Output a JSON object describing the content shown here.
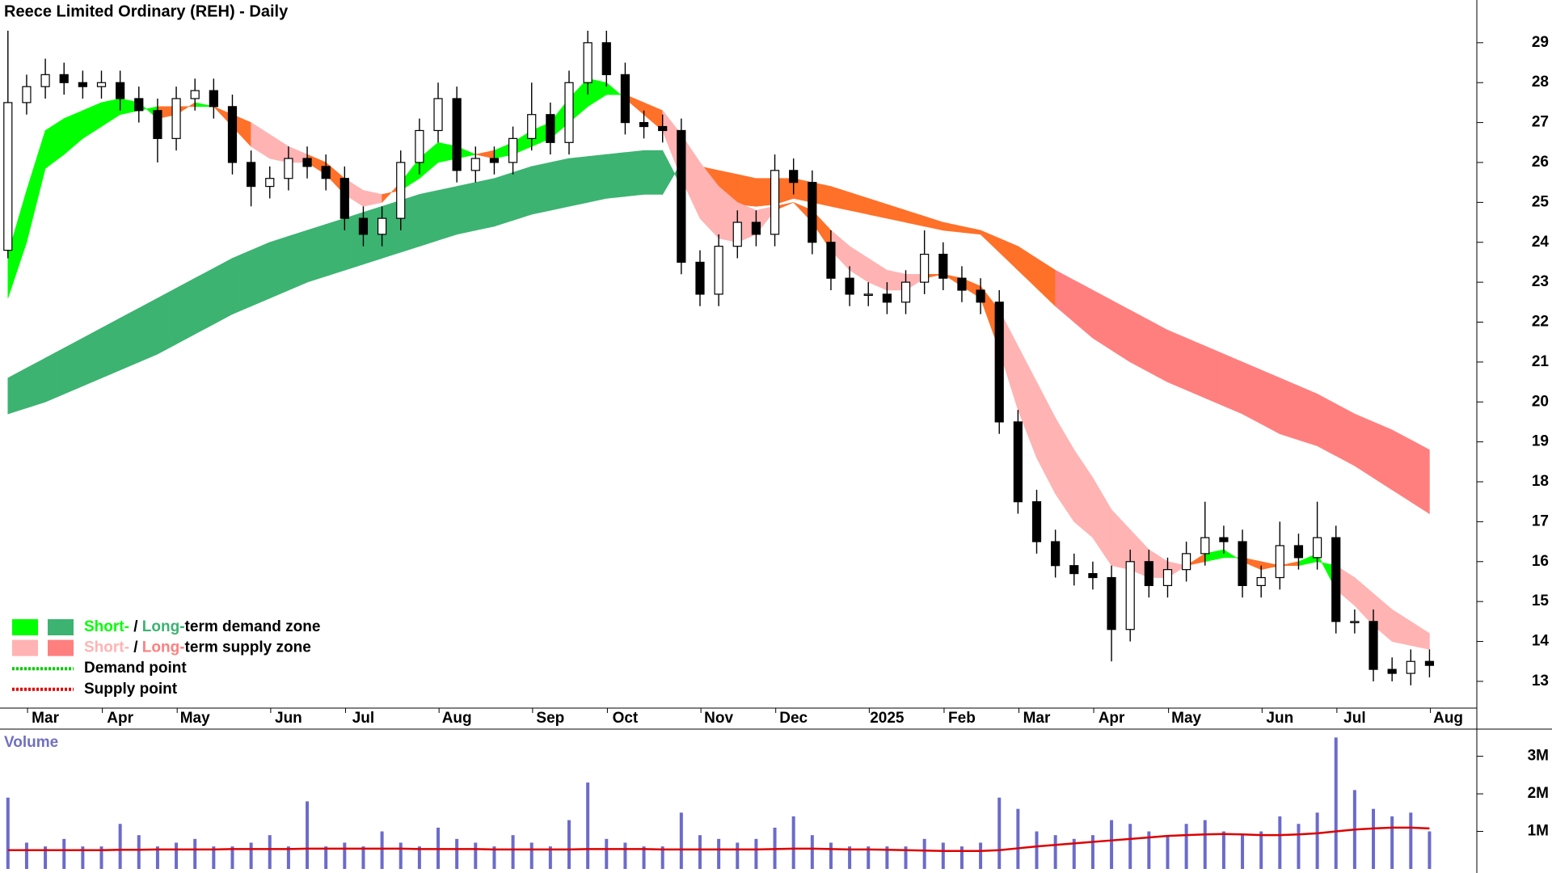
{
  "chart_data": [
    {
      "type": "candlestick",
      "title": "Reece Limited Ordinary (REH) - Daily",
      "categories": [
        null,
        null,
        "Mar",
        null,
        null,
        null,
        "Apr",
        null,
        null,
        null,
        "May",
        null,
        null,
        null,
        null,
        "Jun",
        null,
        null,
        null,
        "Jul",
        null,
        null,
        null,
        null,
        "Aug",
        null,
        null,
        null,
        null,
        "Sep",
        null,
        null,
        null,
        "Oct",
        null,
        null,
        null,
        null,
        "Nov",
        null,
        null,
        null,
        "Dec",
        null,
        null,
        null,
        null,
        "2025",
        null,
        null,
        null,
        "Feb",
        null,
        null,
        null,
        "Mar",
        null,
        null,
        null,
        "Apr",
        null,
        null,
        null,
        "May",
        null,
        null,
        null,
        null,
        "Jun",
        null,
        null,
        null,
        "Jul",
        null,
        null,
        null,
        null,
        "Aug"
      ],
      "open": [
        23.8,
        27.5,
        27.9,
        28.2,
        28.0,
        27.9,
        28.0,
        27.6,
        27.3,
        26.6,
        27.6,
        27.8,
        27.4,
        26.0,
        25.4,
        25.6,
        26.1,
        25.9,
        25.6,
        24.6,
        24.2,
        24.6,
        26.0,
        26.8,
        27.6,
        25.8,
        26.1,
        26.0,
        26.6,
        27.2,
        26.5,
        28.0,
        29.0,
        28.2,
        27.0,
        26.9,
        26.8,
        23.5,
        22.7,
        23.9,
        24.5,
        24.2,
        25.8,
        25.5,
        24.0,
        23.1,
        22.7,
        22.7,
        22.5,
        23.0,
        23.7,
        23.1,
        22.8,
        22.5,
        19.5,
        17.5,
        16.5,
        15.9,
        15.7,
        15.6,
        14.3,
        16.0,
        15.4,
        15.8,
        16.2,
        16.6,
        16.5,
        15.4,
        15.6,
        16.4,
        16.1,
        16.6,
        14.5,
        14.5,
        13.3,
        13.2,
        13.5,
        null
      ],
      "high": [
        29.3,
        28.2,
        28.6,
        28.5,
        28.3,
        28.3,
        28.3,
        27.9,
        27.6,
        27.9,
        28.1,
        28.1,
        27.7,
        26.3,
        25.9,
        26.4,
        26.4,
        26.2,
        25.9,
        24.9,
        24.9,
        26.3,
        27.1,
        28.0,
        27.9,
        26.4,
        26.4,
        26.9,
        28.0,
        27.5,
        28.3,
        29.3,
        29.3,
        28.5,
        27.3,
        27.2,
        27.1,
        23.8,
        24.2,
        24.8,
        24.8,
        26.2,
        26.1,
        25.8,
        24.3,
        23.4,
        23.0,
        23.0,
        23.3,
        24.3,
        24.0,
        23.4,
        23.1,
        22.8,
        19.8,
        17.8,
        16.8,
        16.2,
        16.0,
        15.9,
        16.3,
        16.3,
        16.1,
        16.5,
        17.5,
        16.9,
        16.8,
        15.9,
        17.0,
        16.7,
        17.5,
        16.9,
        14.8,
        14.8,
        13.6,
        13.8,
        13.8,
        null
      ],
      "low": [
        23.6,
        27.2,
        27.6,
        27.7,
        27.6,
        27.6,
        27.3,
        27.0,
        26.0,
        26.3,
        27.3,
        27.1,
        25.7,
        24.9,
        25.1,
        25.3,
        25.6,
        25.3,
        24.3,
        23.9,
        23.9,
        24.3,
        25.7,
        26.5,
        25.5,
        25.5,
        25.7,
        25.7,
        26.3,
        26.2,
        26.2,
        27.7,
        27.9,
        26.7,
        26.6,
        26.5,
        23.2,
        22.4,
        22.4,
        23.6,
        23.9,
        23.9,
        25.2,
        23.7,
        22.8,
        22.4,
        22.4,
        22.2,
        22.2,
        22.7,
        22.8,
        22.5,
        22.2,
        19.2,
        17.2,
        16.2,
        15.6,
        15.4,
        15.3,
        13.5,
        14.0,
        15.1,
        15.1,
        15.5,
        15.9,
        16.2,
        15.1,
        15.1,
        15.3,
        15.8,
        15.8,
        14.2,
        14.2,
        13.0,
        13.0,
        12.9,
        13.1,
        null
      ],
      "close": [
        27.5,
        27.9,
        28.2,
        28.0,
        27.9,
        28.0,
        27.6,
        27.3,
        26.6,
        27.6,
        27.8,
        27.4,
        26.0,
        25.4,
        25.6,
        26.1,
        25.9,
        25.6,
        24.6,
        24.2,
        24.6,
        26.0,
        26.8,
        27.6,
        25.8,
        26.1,
        26.0,
        26.6,
        27.2,
        26.5,
        28.0,
        29.0,
        28.2,
        27.0,
        26.9,
        26.8,
        23.5,
        22.7,
        23.9,
        24.5,
        24.2,
        25.8,
        25.5,
        24.0,
        23.1,
        22.7,
        22.7,
        22.5,
        23.0,
        23.7,
        23.1,
        22.8,
        22.5,
        19.5,
        17.5,
        16.5,
        15.9,
        15.7,
        15.6,
        14.3,
        16.0,
        15.4,
        15.8,
        16.2,
        16.6,
        16.5,
        15.4,
        15.6,
        16.4,
        16.1,
        16.6,
        14.5,
        14.5,
        13.3,
        13.2,
        13.5,
        13.4,
        null
      ],
      "bands": [
        {
          "fast": [
            20.6,
            20.85,
            21.1,
            21.35,
            21.6,
            21.85,
            22.1,
            22.35,
            22.6,
            22.85,
            23.1,
            23.35,
            23.6,
            23.8,
            24.0,
            24.15,
            24.3,
            24.45,
            24.6,
            24.75,
            24.9,
            25.05,
            25.2,
            25.3,
            25.4,
            25.5,
            25.6,
            25.75,
            25.9,
            26.0,
            26.1,
            26.15,
            26.2,
            26.25,
            26.3,
            26.3,
            25.4,
            25.2,
            25.05,
            24.95,
            24.9,
            24.95,
            25.1,
            25.0,
            24.9,
            24.8,
            24.7,
            24.6,
            24.5,
            24.4,
            24.3,
            24.25,
            24.2,
            23.75,
            23.3,
            22.85,
            22.4,
            22.0,
            21.6,
            21.3,
            21.0,
            20.75,
            20.5,
            20.3,
            20.1,
            19.9,
            19.7,
            19.45,
            19.2,
            19.05,
            18.9,
            18.65,
            18.4,
            18.1,
            17.8,
            17.5,
            17.2,
            null
          ],
          "slow": [
            19.7,
            19.85,
            20.0,
            20.2,
            20.4,
            20.6,
            20.8,
            21.0,
            21.2,
            21.45,
            21.7,
            21.95,
            22.2,
            22.4,
            22.6,
            22.8,
            23.0,
            23.15,
            23.3,
            23.45,
            23.6,
            23.75,
            23.9,
            24.05,
            24.2,
            24.3,
            24.4,
            24.55,
            24.7,
            24.8,
            24.9,
            25.0,
            25.1,
            25.15,
            25.2,
            25.2,
            26.0,
            25.9,
            25.8,
            25.7,
            25.6,
            25.6,
            25.6,
            25.5,
            25.4,
            25.25,
            25.1,
            24.95,
            24.8,
            24.65,
            24.5,
            24.4,
            24.3,
            24.1,
            23.9,
            23.6,
            23.3,
            23.05,
            22.8,
            22.55,
            22.3,
            22.05,
            21.8,
            21.6,
            21.4,
            21.2,
            21.0,
            20.8,
            20.6,
            20.4,
            20.2,
            19.95,
            19.7,
            19.5,
            19.3,
            19.05,
            18.8,
            null
          ],
          "up_color": "#3cb371",
          "down_color": "#ff7f7f",
          "mixed_color": "#ff7029"
        },
        {
          "fast": [
            23.7,
            25.3,
            26.8,
            27.1,
            27.3,
            27.5,
            27.6,
            27.5,
            27.1,
            27.2,
            27.5,
            27.4,
            26.9,
            26.4,
            26.1,
            26.0,
            26.0,
            25.7,
            25.2,
            24.9,
            25.0,
            25.5,
            26.1,
            26.5,
            26.4,
            26.2,
            26.3,
            26.5,
            26.8,
            27.0,
            27.6,
            28.1,
            28.0,
            27.6,
            27.2,
            26.8,
            25.6,
            24.6,
            24.1,
            24.0,
            24.2,
            24.8,
            25.0,
            24.5,
            23.8,
            23.3,
            23.0,
            22.8,
            22.8,
            23.1,
            23.2,
            22.9,
            22.6,
            21.3,
            19.8,
            18.6,
            17.7,
            17.0,
            16.6,
            15.9,
            15.8,
            15.6,
            15.6,
            15.9,
            16.2,
            16.3,
            16.0,
            15.8,
            15.9,
            16.0,
            16.2,
            15.3,
            14.9,
            14.4,
            14.0,
            13.9,
            13.8,
            null
          ],
          "slow": [
            22.6,
            24.0,
            25.85,
            26.2,
            26.6,
            26.9,
            27.2,
            27.3,
            27.4,
            27.4,
            27.4,
            27.4,
            27.2,
            27.0,
            26.7,
            26.4,
            26.2,
            26.0,
            25.6,
            25.3,
            25.2,
            25.3,
            25.6,
            26.0,
            26.1,
            26.2,
            26.1,
            26.2,
            26.4,
            26.6,
            27.0,
            27.4,
            27.7,
            27.7,
            27.5,
            27.3,
            26.7,
            26.0,
            25.4,
            25.0,
            24.8,
            24.9,
            25.0,
            24.8,
            24.3,
            23.9,
            23.6,
            23.3,
            23.2,
            23.2,
            23.2,
            23.1,
            22.9,
            22.3,
            21.4,
            20.5,
            19.6,
            18.8,
            18.1,
            17.3,
            16.8,
            16.3,
            16.0,
            15.9,
            16.0,
            16.1,
            16.1,
            16.0,
            15.9,
            15.9,
            16.0,
            15.9,
            15.6,
            15.2,
            14.8,
            14.5,
            14.2,
            null
          ],
          "up_color": "#00ff00",
          "down_color": "#ffb3b3",
          "mixed_color": "#ff7029"
        }
      ],
      "ylim": [
        12.33,
        30.07
      ],
      "yticks": [
        13,
        14,
        15,
        16,
        17,
        18,
        19,
        20,
        21,
        22,
        23,
        24,
        25,
        26,
        27,
        28,
        29
      ],
      "legend_corner": "lower-left",
      "legend": [
        {
          "colors": [
            "#00ff00",
            "#3cb371"
          ],
          "text": [
            "Short-",
            " / ",
            "Long-",
            "term demand zone"
          ]
        },
        {
          "colors": [
            "#ffb3b3",
            "#ff7f7f"
          ],
          "text": [
            "Short-",
            " / ",
            "Long-",
            "term supply zone"
          ]
        },
        {
          "line_color": "#00cc00",
          "text": "Demand point"
        },
        {
          "line_color": "#dd0000",
          "text": "Supply point"
        }
      ]
    },
    {
      "type": "bar",
      "title": "Volume",
      "color": "#6b6bcc",
      "values": [
        1900000,
        700000,
        600000,
        800000,
        600000,
        600000,
        1200000,
        900000,
        600000,
        700000,
        800000,
        600000,
        600000,
        700000,
        900000,
        600000,
        1800000,
        600000,
        700000,
        600000,
        1000000,
        700000,
        600000,
        1100000,
        800000,
        700000,
        600000,
        900000,
        700000,
        600000,
        1300000,
        2300000,
        800000,
        700000,
        600000,
        600000,
        1500000,
        900000,
        800000,
        700000,
        800000,
        1100000,
        1400000,
        900000,
        700000,
        600000,
        600000,
        600000,
        600000,
        800000,
        700000,
        600000,
        700000,
        1900000,
        1600000,
        1000000,
        900000,
        800000,
        900000,
        1300000,
        1200000,
        1000000,
        900000,
        1200000,
        1300000,
        1000000,
        900000,
        1000000,
        1400000,
        1200000,
        1500000,
        3500000,
        2100000,
        1600000,
        1400000,
        1500000,
        1000000,
        null
      ],
      "average": {
        "color": "#dd0000",
        "values": [
          500000,
          500000,
          500000,
          500000,
          500000,
          500000,
          510000,
          510000,
          520000,
          520000,
          520000,
          520000,
          530000,
          530000,
          530000,
          530000,
          540000,
          540000,
          540000,
          540000,
          540000,
          540000,
          530000,
          530000,
          530000,
          530000,
          520000,
          520000,
          520000,
          520000,
          520000,
          530000,
          530000,
          530000,
          530000,
          520000,
          520000,
          520000,
          520000,
          520000,
          520000,
          530000,
          540000,
          540000,
          530000,
          520000,
          520000,
          510000,
          500000,
          490000,
          480000,
          480000,
          480000,
          500000,
          550000,
          600000,
          640000,
          680000,
          720000,
          760000,
          800000,
          840000,
          880000,
          900000,
          920000,
          930000,
          920000,
          900000,
          900000,
          920000,
          950000,
          1000000,
          1050000,
          1080000,
          1100000,
          1100000,
          1080000,
          null
        ]
      },
      "ylim": [
        0,
        3680000
      ],
      "yticks": [
        {
          "value": 1000000,
          "label": "1M"
        },
        {
          "value": 2000000,
          "label": "2M"
        },
        {
          "value": 3000000,
          "label": "3M"
        }
      ]
    }
  ]
}
